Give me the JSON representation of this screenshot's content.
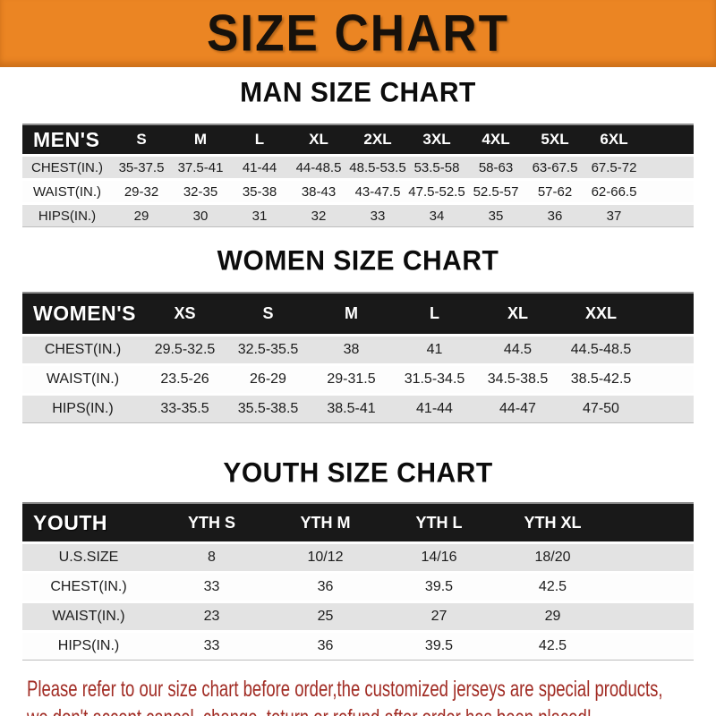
{
  "banner": {
    "title": "SIZE CHART"
  },
  "colors": {
    "banner_bg": "#EB8523",
    "header_bar": "#191919",
    "row_stripe": "#E3E3E3",
    "notice_text": "#A12C24"
  },
  "sections": [
    {
      "heading": "MAN SIZE CHART",
      "table": {
        "label": "MEN'S",
        "columns": [
          "S",
          "M",
          "L",
          "XL",
          "2XL",
          "3XL",
          "4XL",
          "5XL",
          "6XL"
        ],
        "rows": [
          {
            "label": "CHEST(IN.)",
            "values": [
              "35-37.5",
              "37.5-41",
              "41-44",
              "44-48.5",
              "48.5-53.5",
              "53.5-58",
              "58-63",
              "63-67.5",
              "67.5-72"
            ]
          },
          {
            "label": "WAIST(IN.)",
            "values": [
              "29-32",
              "32-35",
              "35-38",
              "38-43",
              "43-47.5",
              "47.5-52.5",
              "52.5-57",
              "57-62",
              "62-66.5"
            ]
          },
          {
            "label": "HIPS(IN.)",
            "values": [
              "29",
              "30",
              "31",
              "32",
              "33",
              "34",
              "35",
              "36",
              "37"
            ]
          }
        ]
      }
    },
    {
      "heading": "WOMEN SIZE CHART",
      "table": {
        "label": "WOMEN'S",
        "columns": [
          "XS",
          "S",
          "M",
          "L",
          "XL",
          "XXL"
        ],
        "rows": [
          {
            "label": "CHEST(IN.)",
            "values": [
              "29.5-32.5",
              "32.5-35.5",
              "38",
              "41",
              "44.5",
              "44.5-48.5"
            ]
          },
          {
            "label": "WAIST(IN.)",
            "values": [
              "23.5-26",
              "26-29",
              "29-31.5",
              "31.5-34.5",
              "34.5-38.5",
              "38.5-42.5"
            ]
          },
          {
            "label": "HIPS(IN.)",
            "values": [
              "33-35.5",
              "35.5-38.5",
              "38.5-41",
              "41-44",
              "44-47",
              "47-50"
            ]
          }
        ]
      }
    },
    {
      "heading": "YOUTH SIZE CHART",
      "table": {
        "label": "YOUTH",
        "columns": [
          "YTH S",
          "YTH M",
          "YTH L",
          "YTH XL"
        ],
        "rows": [
          {
            "label": "U.S.SIZE",
            "values": [
              "8",
              "10/12",
              "14/16",
              "18/20"
            ]
          },
          {
            "label": "CHEST(IN.)",
            "values": [
              "33",
              "36",
              "39.5",
              "42.5"
            ]
          },
          {
            "label": "WAIST(IN.)",
            "values": [
              "23",
              "25",
              "27",
              "29"
            ]
          },
          {
            "label": "HIPS(IN.)",
            "values": [
              "33",
              "36",
              "39.5",
              "42.5"
            ]
          }
        ]
      }
    }
  ],
  "footer": {
    "lines": [
      "Please refer to our size chart before order,the customized jerseys are special products,",
      "we don't accept cancel, change, teturn or refund after order has been placed!"
    ]
  }
}
